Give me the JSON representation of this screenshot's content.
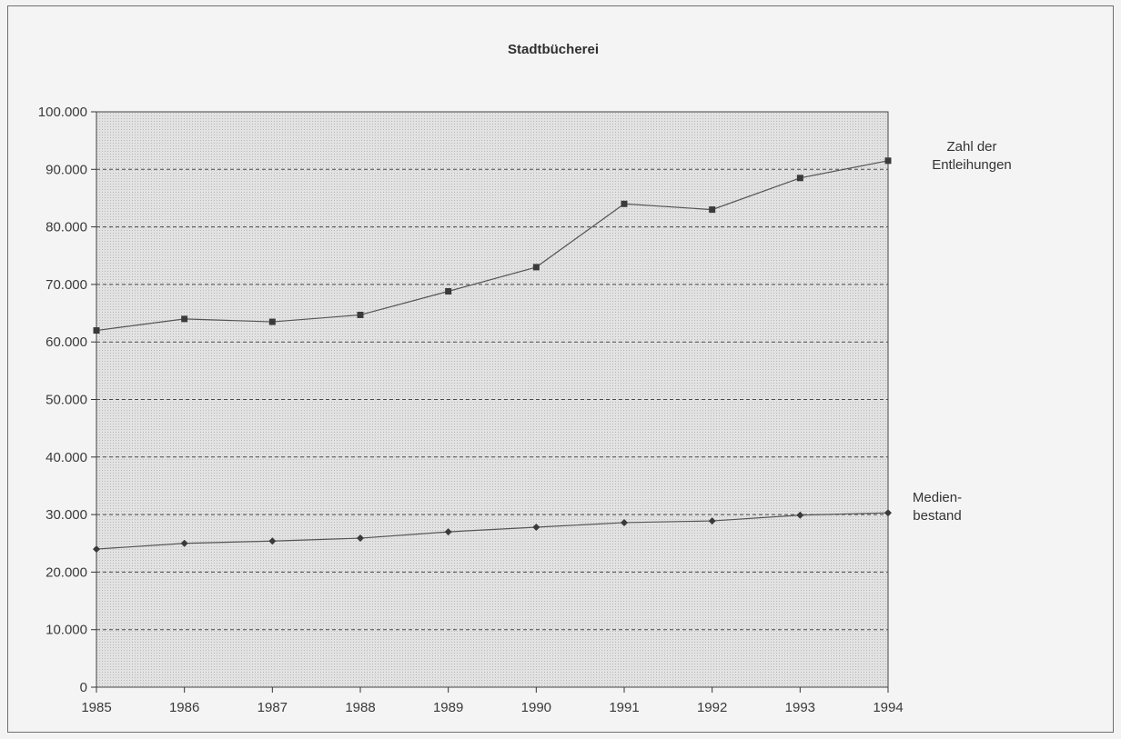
{
  "chart_data": {
    "type": "line",
    "title": "Stadtbücherei",
    "xlabel": "",
    "ylabel": "",
    "x": [
      "1985",
      "1986",
      "1987",
      "1988",
      "1989",
      "1990",
      "1991",
      "1992",
      "1993",
      "1994"
    ],
    "y_ticks": [
      "0",
      "10.000",
      "20.000",
      "30.000",
      "40.000",
      "50.000",
      "60.000",
      "70.000",
      "80.000",
      "90.000",
      "100.000"
    ],
    "ylim": [
      0,
      100000
    ],
    "grid": true,
    "series": [
      {
        "name": "Zahl der Entleihungen",
        "name_lines": [
          "Zahl der",
          "Entleihungen"
        ],
        "values": [
          62000,
          64000,
          63500,
          64700,
          68800,
          73000,
          84000,
          83000,
          88500,
          91500
        ],
        "marker": "square"
      },
      {
        "name": "Medienbestand",
        "name_lines": [
          "Medien-",
          "bestand"
        ],
        "values": [
          24000,
          25000,
          25400,
          25900,
          27000,
          27800,
          28600,
          28900,
          29900,
          30300
        ],
        "marker": "diamond"
      }
    ],
    "colors": {
      "line": "#555555",
      "marker": "#3a3a3a",
      "grid": "#4a4a4a",
      "plot_bg": "#dcdcdc"
    }
  }
}
